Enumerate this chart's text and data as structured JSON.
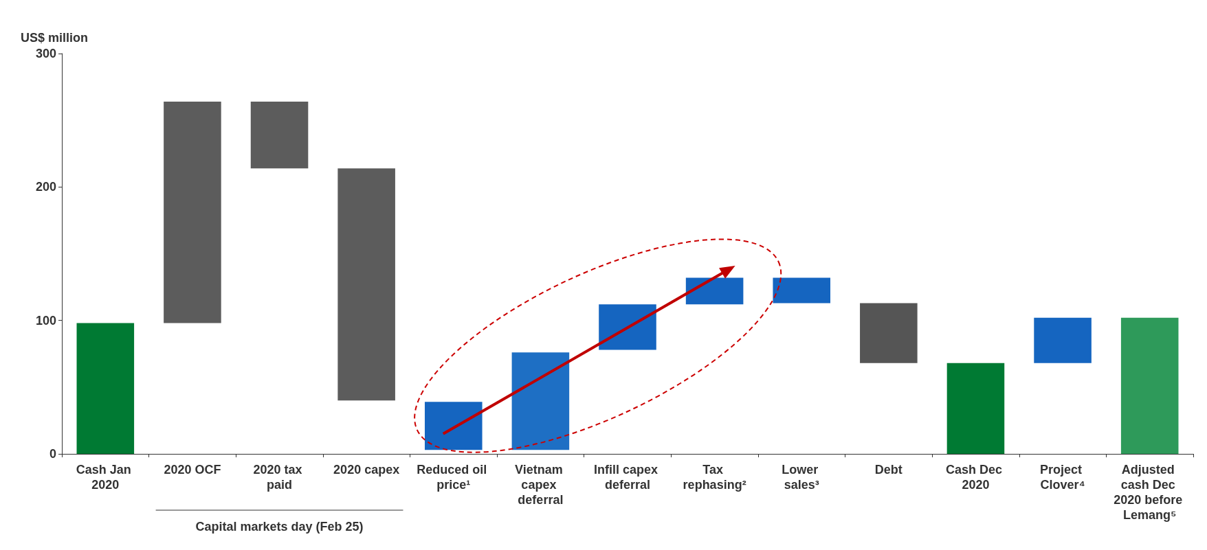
{
  "chart_data": {
    "type": "bar",
    "ylabel": "US$ million",
    "categories": [
      "Cash Jan 2020",
      "2020 OCF",
      "2020 tax paid",
      "2020 capex",
      "Reduced oil price¹",
      "Vietnam capex deferral",
      "Infill capex deferral",
      "Tax rephasing²",
      "Lower sales³",
      "Debt",
      "Cash Dec 2020",
      "Project Clover⁴",
      "Adjusted cash Dec 2020 before Lemang⁵"
    ],
    "values": [
      98,
      166,
      50,
      174,
      36,
      73,
      34,
      20,
      19,
      45,
      68,
      34,
      102
    ],
    "base": [
      0,
      98,
      214,
      40,
      3,
      3,
      78,
      112,
      113,
      68,
      0,
      68,
      0
    ],
    "colors": [
      "#007a33",
      "#5c5c5c",
      "#5c5c5c",
      "#5c5c5c",
      "#1565c0",
      "#1e6fc4",
      "#1565c0",
      "#1565c0",
      "#1565c0",
      "#555555",
      "#007a33",
      "#1565c0",
      "#2e9a5a"
    ],
    "ylim": [
      0,
      300
    ],
    "yticks": [
      0,
      100,
      200,
      300
    ],
    "grid": false,
    "annotations": [
      "Capital markets day (Feb 25)"
    ]
  }
}
